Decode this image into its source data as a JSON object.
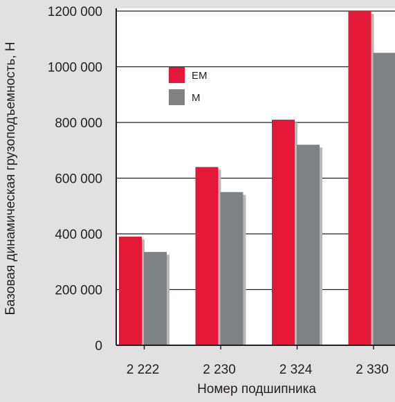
{
  "colors": {
    "background": "#e1e1e1",
    "plot_background": "#ffffff",
    "EM": "#e31837",
    "M": "#808184",
    "shadow": "#b7b8ba",
    "axis": "#231f20"
  },
  "chart_data": {
    "type": "bar",
    "categories": [
      "2 222",
      "2 230",
      "2 324",
      "2 330"
    ],
    "series": [
      {
        "name": "EM",
        "values": [
          390000,
          640000,
          810000,
          1200000
        ]
      },
      {
        "name": "M",
        "values": [
          335000,
          550000,
          720000,
          1050000
        ]
      }
    ],
    "xlabel": "Номер подшипника",
    "ylabel": "Базовая динамическая грузоподъемность, Н",
    "ylim": [
      0,
      1200000
    ],
    "yticks": [
      {
        "value": 0,
        "label": "0"
      },
      {
        "value": 200000,
        "label": "200 000"
      },
      {
        "value": 400000,
        "label": "400 000"
      },
      {
        "value": 600000,
        "label": "600 000"
      },
      {
        "value": 800000,
        "label": "800 000"
      },
      {
        "value": 1000000,
        "label": "1000 000"
      },
      {
        "value": 1200000,
        "label": "1200 000"
      }
    ],
    "grid": true,
    "legend_position": "top-left",
    "legend": [
      {
        "name": "EM",
        "label": "EM"
      },
      {
        "name": "M",
        "label": "M"
      }
    ]
  }
}
